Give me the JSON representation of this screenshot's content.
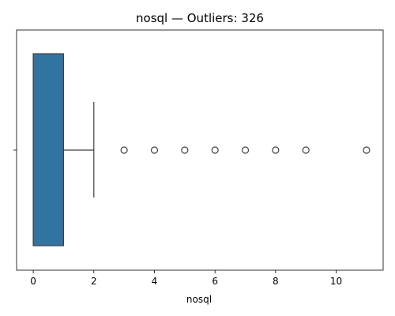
{
  "chart_data": {
    "type": "box",
    "title": "nosql — Outliers: 326",
    "xlabel": "nosql",
    "ylabel": "",
    "orientation": "horizontal",
    "xlim": [
      -0.55,
      11.55
    ],
    "xticks": [
      0,
      2,
      4,
      6,
      8,
      10
    ],
    "grid": false,
    "box": {
      "min": 0,
      "q1": 0,
      "median": 0,
      "q3": 1,
      "whisker_low": 0,
      "whisker_high": 2,
      "outliers": [
        3,
        4,
        5,
        6,
        7,
        8,
        9,
        11
      ],
      "outlier_count": 326
    },
    "colors": {
      "box_fill": "#3274a1",
      "line": "#3f3f3f",
      "outlier_edge": "#3f3f3f",
      "background": "#ffffff"
    }
  }
}
